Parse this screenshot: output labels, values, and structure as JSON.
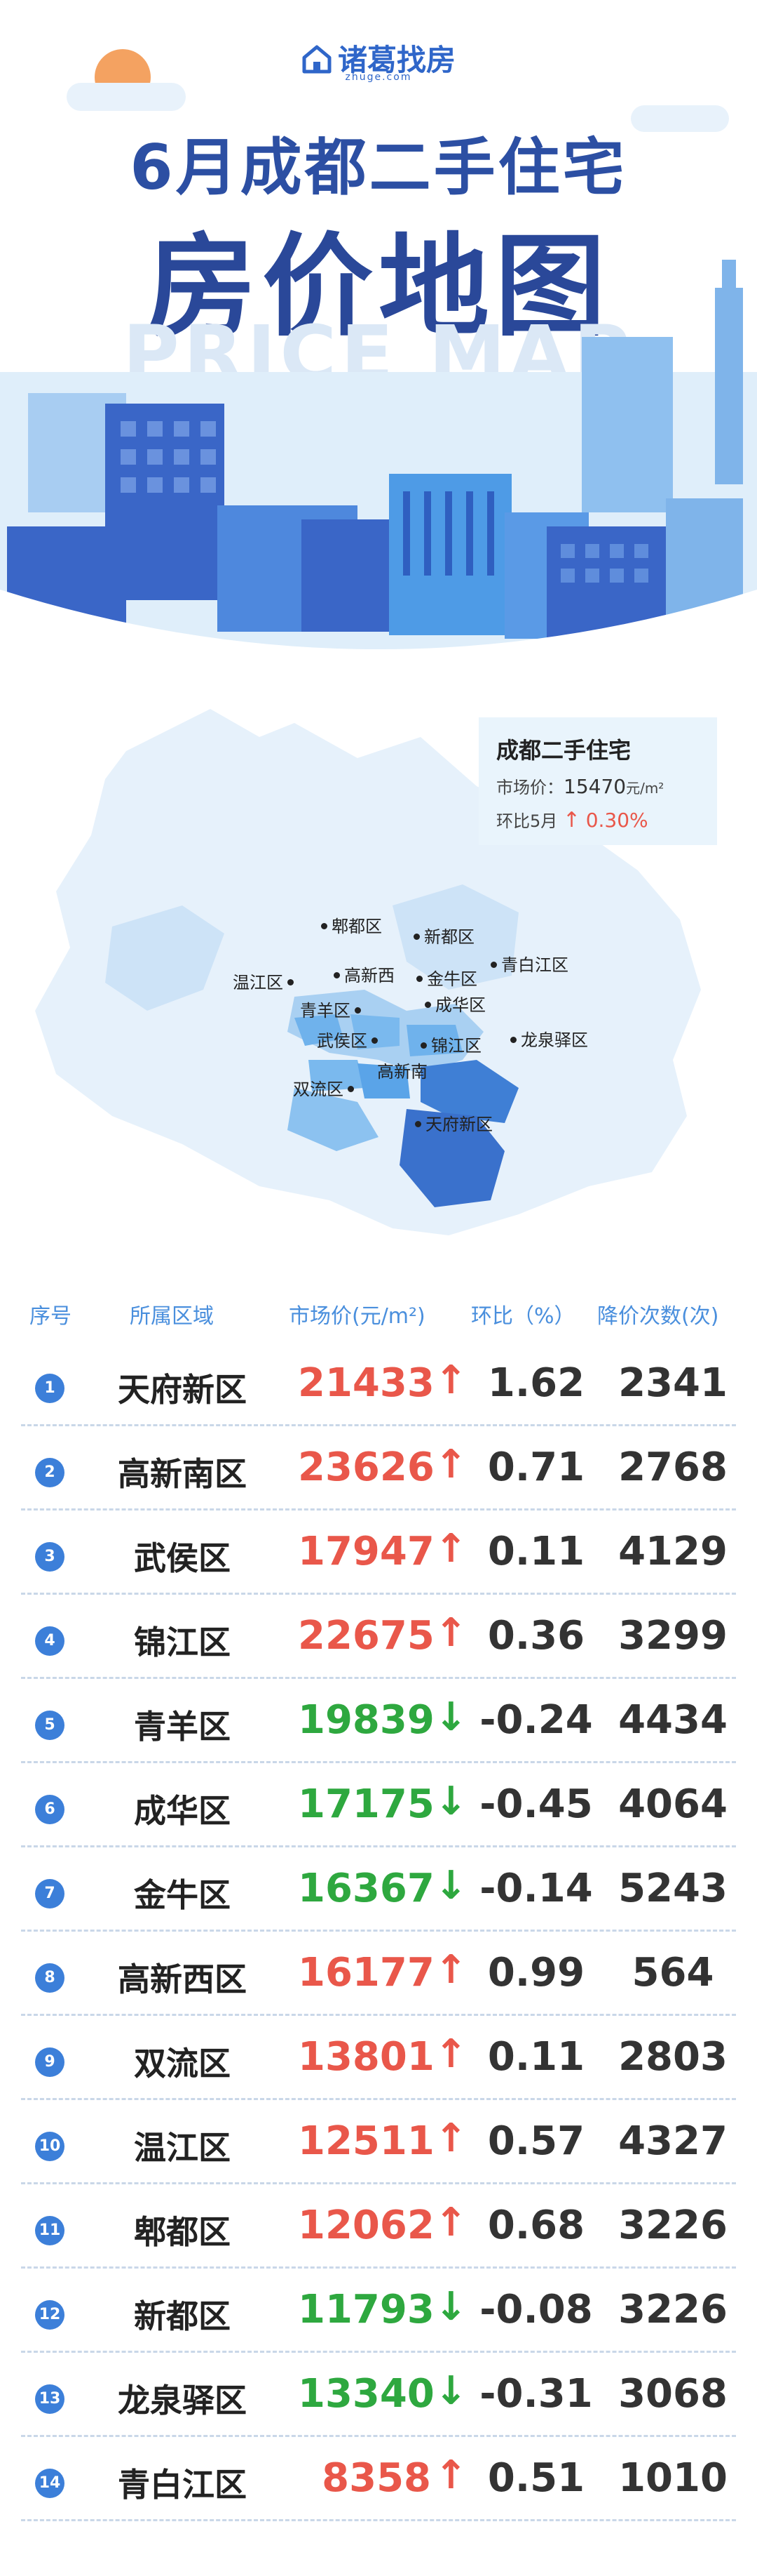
{
  "header": {
    "brand_name": "诸葛找房",
    "brand_sub": "zhuge.com",
    "title_line1": "6月成都二手住宅",
    "title_line2": "房价地图",
    "watermark": "PRICE MAP"
  },
  "summary": {
    "title": "成都二手住宅",
    "price_label": "市场价：",
    "price_value": "15470",
    "price_unit": "元/m²",
    "mom_label": "环比5月",
    "mom_arrow": "↑",
    "mom_value": "0.30%"
  },
  "map_labels": {
    "pidu": "郫都区",
    "xindu": "新都区",
    "qingbaijiang": "青白江区",
    "wenjiang": "温江区",
    "gaoxinxi": "高新西",
    "jinniu": "金牛区",
    "qingyang": "青羊区",
    "chenghua": "成华区",
    "wuhou": "武侯区",
    "jinjiang": "锦江区",
    "longquanyi": "龙泉驿区",
    "shuangliu": "双流区",
    "gaoxinnan": "高新南",
    "tianfu": "天府新区"
  },
  "table": {
    "headers": [
      "序号",
      "所属区域",
      "市场价(元/m²)",
      "环比（%）",
      "降价次数(次)"
    ],
    "rows": [
      {
        "rank": "1",
        "region": "天府新区",
        "price": "21433",
        "trend": "↑",
        "dir": "up",
        "change": "1.62",
        "cuts": "2341"
      },
      {
        "rank": "2",
        "region": "高新南区",
        "price": "23626",
        "trend": "↑",
        "dir": "up",
        "change": "0.71",
        "cuts": "2768"
      },
      {
        "rank": "3",
        "region": "武侯区",
        "price": "17947",
        "trend": "↑",
        "dir": "up",
        "change": "0.11",
        "cuts": "4129"
      },
      {
        "rank": "4",
        "region": "锦江区",
        "price": "22675",
        "trend": "↑",
        "dir": "up",
        "change": "0.36",
        "cuts": "3299"
      },
      {
        "rank": "5",
        "region": "青羊区",
        "price": "19839",
        "trend": "↓",
        "dir": "down",
        "change": "-0.24",
        "cuts": "4434"
      },
      {
        "rank": "6",
        "region": "成华区",
        "price": "17175",
        "trend": "↓",
        "dir": "down",
        "change": "-0.45",
        "cuts": "4064"
      },
      {
        "rank": "7",
        "region": "金牛区",
        "price": "16367",
        "trend": "↓",
        "dir": "down",
        "change": "-0.14",
        "cuts": "5243"
      },
      {
        "rank": "8",
        "region": "高新西区",
        "price": "16177",
        "trend": "↑",
        "dir": "up",
        "change": "0.99",
        "cuts": "564"
      },
      {
        "rank": "9",
        "region": "双流区",
        "price": "13801",
        "trend": "↑",
        "dir": "up",
        "change": "0.11",
        "cuts": "2803"
      },
      {
        "rank": "10",
        "region": "温江区",
        "price": "12511",
        "trend": "↑",
        "dir": "up",
        "change": "0.57",
        "cuts": "4327"
      },
      {
        "rank": "11",
        "region": "郫都区",
        "price": "12062",
        "trend": "↑",
        "dir": "up",
        "change": "0.68",
        "cuts": "3226"
      },
      {
        "rank": "12",
        "region": "新都区",
        "price": "11793",
        "trend": "↓",
        "dir": "down",
        "change": "-0.08",
        "cuts": "3226"
      },
      {
        "rank": "13",
        "region": "龙泉驿区",
        "price": "13340",
        "trend": "↓",
        "dir": "down",
        "change": "-0.31",
        "cuts": "3068"
      },
      {
        "rank": "14",
        "region": "青白江区",
        "price": "8358",
        "trend": "↑",
        "dir": "up",
        "change": "0.51",
        "cuts": "1010"
      }
    ]
  },
  "colors": {
    "accent_blue": "#3c7fd9",
    "title_blue": "#2a4899",
    "up_red": "#e9574a",
    "down_green": "#2ea83f"
  }
}
